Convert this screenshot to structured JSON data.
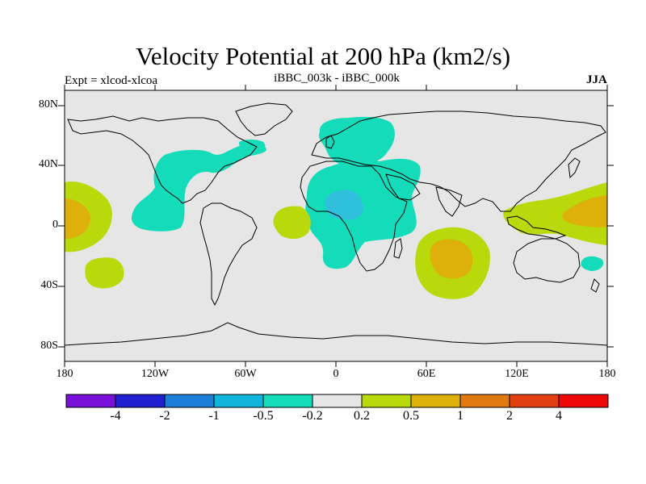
{
  "header": {
    "title": "Velocity Potential at 200 hPa (km2/s)",
    "left_subtitle": "Expt = xlcod-xlcoa",
    "center_subtitle": "iBBC_003k - iBBC_000k",
    "right_subtitle": "JJA"
  },
  "axes": {
    "lat_labels": [
      "80N",
      "40N",
      "0",
      "40S",
      "80S"
    ],
    "lon_labels": [
      "180",
      "120W",
      "60W",
      "0",
      "60E",
      "120E",
      "180"
    ]
  },
  "colorbar": {
    "colors": [
      "#7a0fd9",
      "#2020d0",
      "#1b7fd9",
      "#12b4dc",
      "#14dcba",
      "#e6e6e6",
      "#b9d90a",
      "#ddb00a",
      "#e07a10",
      "#e04010",
      "#ee0808"
    ],
    "labels": [
      "-4",
      "-2",
      "-1",
      "-0.5",
      "-0.2",
      "0.2",
      "0.5",
      "1",
      "2",
      "4"
    ]
  },
  "colors": {
    "background": "#e6e6e6",
    "negative_light": "#14dcba",
    "negative_mid": "#2ec0dc",
    "positive_light": "#b9d90a",
    "positive_mid": "#ddb00a"
  }
}
